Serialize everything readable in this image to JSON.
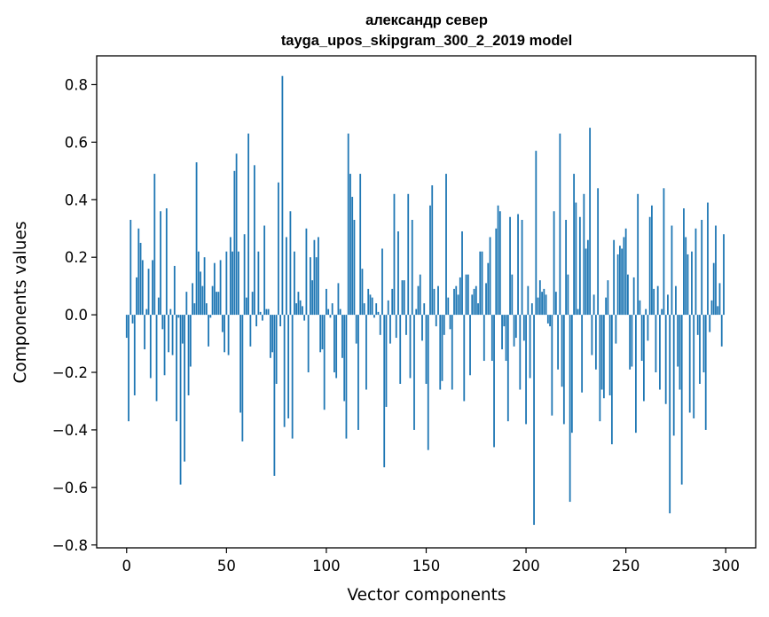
{
  "chart_data": {
    "type": "bar",
    "title_line1": "александр север",
    "title_line2": "tayga_upos_skipgram_300_2_2019 model",
    "xlabel": "Vector components",
    "ylabel": "Components values",
    "xlim": [
      -15,
      315
    ],
    "ylim": [
      -0.81,
      0.9
    ],
    "xticks": [
      0,
      50,
      100,
      150,
      200,
      250,
      300
    ],
    "xtick_labels": [
      "0",
      "50",
      "100",
      "150",
      "200",
      "250",
      "300"
    ],
    "yticks": [
      -0.8,
      -0.6,
      -0.4,
      -0.2,
      0.0,
      0.2,
      0.4,
      0.6,
      0.8
    ],
    "ytick_labels": [
      "−0.8",
      "−0.6",
      "−0.4",
      "−0.2",
      "0.0",
      "0.2",
      "0.4",
      "0.6",
      "0.8"
    ],
    "color": "#1f77b4",
    "grid": false,
    "values": [
      -0.08,
      -0.37,
      0.33,
      -0.03,
      -0.28,
      0.13,
      0.3,
      0.25,
      0.19,
      -0.12,
      0.02,
      0.16,
      -0.22,
      0.19,
      0.49,
      -0.3,
      0.06,
      0.36,
      -0.05,
      -0.21,
      0.37,
      -0.13,
      0.02,
      -0.14,
      0.17,
      -0.37,
      -0.01,
      -0.59,
      -0.1,
      -0.51,
      0.08,
      -0.28,
      -0.18,
      0.11,
      0.04,
      0.53,
      0.22,
      0.15,
      0.1,
      0.2,
      0.04,
      -0.11,
      -0.01,
      0.1,
      0.18,
      0.08,
      0.08,
      0.19,
      -0.06,
      -0.13,
      0.22,
      -0.14,
      0.27,
      0.22,
      0.5,
      0.56,
      0.22,
      -0.34,
      -0.44,
      0.28,
      0.06,
      0.63,
      -0.11,
      0.08,
      0.52,
      -0.04,
      0.22,
      0.01,
      -0.02,
      0.31,
      0.02,
      0.02,
      -0.15,
      -0.13,
      -0.56,
      -0.24,
      0.46,
      -0.04,
      0.83,
      -0.39,
      0.27,
      -0.36,
      0.36,
      -0.43,
      0.22,
      0.04,
      0.08,
      0.05,
      0.03,
      -0.02,
      0.3,
      -0.2,
      0.2,
      0.12,
      0.26,
      0.2,
      0.27,
      -0.13,
      -0.12,
      -0.33,
      0.09,
      0.02,
      -0.01,
      0.04,
      -0.2,
      -0.22,
      0.11,
      0.02,
      -0.15,
      -0.3,
      -0.43,
      0.63,
      0.49,
      0.41,
      0.33,
      -0.1,
      -0.4,
      0.49,
      0.16,
      0.04,
      -0.26,
      0.09,
      0.07,
      0.06,
      -0.01,
      0.04,
      0.01,
      -0.07,
      0.23,
      -0.53,
      -0.32,
      0.05,
      -0.1,
      0.09,
      0.42,
      -0.08,
      0.29,
      -0.24,
      0.12,
      0.12,
      -0.07,
      0.42,
      -0.22,
      0.33,
      -0.4,
      0.02,
      0.1,
      0.14,
      -0.09,
      0.04,
      -0.24,
      -0.47,
      0.38,
      0.45,
      0.09,
      -0.04,
      0.1,
      -0.26,
      -0.23,
      -0.07,
      0.49,
      0.06,
      -0.05,
      -0.26,
      0.09,
      0.1,
      0.07,
      0.13,
      0.29,
      -0.3,
      0.14,
      0.14,
      -0.21,
      0.07,
      0.09,
      0.1,
      0.04,
      0.22,
      0.22,
      -0.16,
      0.11,
      0.18,
      0.27,
      -0.16,
      -0.46,
      0.3,
      0.38,
      0.36,
      -0.12,
      -0.04,
      -0.16,
      -0.37,
      0.34,
      0.14,
      -0.11,
      -0.08,
      0.35,
      -0.26,
      0.33,
      -0.09,
      -0.38,
      0.1,
      -0.22,
      0.04,
      -0.73,
      0.57,
      0.06,
      0.12,
      0.08,
      0.09,
      0.07,
      -0.03,
      -0.04,
      -0.35,
      0.36,
      0.08,
      -0.19,
      0.63,
      -0.25,
      -0.38,
      0.33,
      0.14,
      -0.65,
      -0.41,
      0.49,
      0.39,
      0.02,
      0.34,
      -0.27,
      0.42,
      0.23,
      0.26,
      0.65,
      -0.14,
      0.07,
      -0.19,
      0.44,
      -0.37,
      -0.26,
      -0.29,
      0.06,
      0.12,
      -0.28,
      -0.45,
      0.26,
      -0.1,
      0.21,
      0.24,
      0.23,
      0.27,
      0.3,
      0.14,
      -0.19,
      -0.18,
      0.13,
      -0.41,
      0.42,
      0.05,
      -0.16,
      -0.3,
      0.02,
      -0.09,
      0.34,
      0.38,
      0.09,
      -0.2,
      0.1,
      -0.26,
      0.02,
      0.44,
      -0.31,
      0.07,
      -0.69,
      0.31,
      -0.42,
      0.1,
      -0.18,
      -0.26,
      -0.59,
      0.37,
      0.27,
      0.21,
      -0.34,
      0.22,
      -0.36,
      0.3,
      -0.07,
      -0.24,
      0.33,
      -0.2,
      -0.4,
      0.39,
      -0.06,
      0.05,
      0.18,
      0.31,
      0.03,
      0.11,
      -0.11,
      0.28
    ]
  }
}
